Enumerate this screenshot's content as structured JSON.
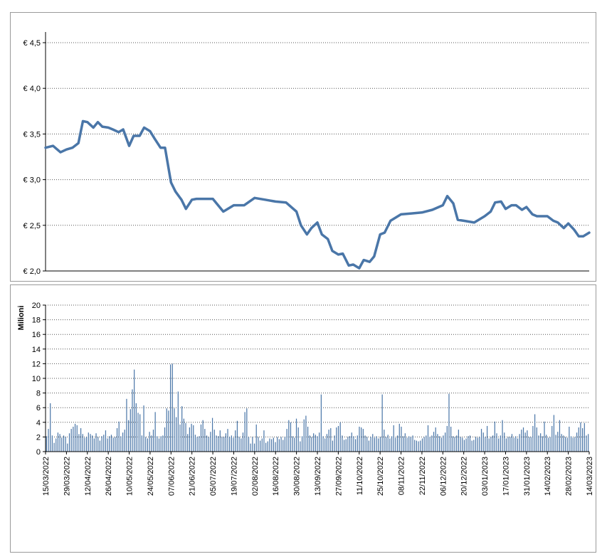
{
  "chart_data": [
    {
      "type": "line",
      "panel": "price",
      "title": "",
      "xlabel": "",
      "ylabel": "",
      "ylim": [
        2.0,
        4.5
      ],
      "yticks": [
        2.0,
        2.5,
        3.0,
        3.5,
        4.0,
        4.5
      ],
      "ytick_labels": [
        "€ 2,0",
        "€ 2,5",
        "€ 3,0",
        "€ 3,5",
        "€ 4,0",
        "€ 4,5"
      ],
      "grid": true,
      "line_color": "#4A76A8",
      "series": [
        {
          "x": [
            "15/03/2022",
            "20/03/2022",
            "25/03/2022",
            "29/03/2022",
            "02/04/2022",
            "06/04/2022",
            "09/04/2022",
            "12/04/2022",
            "16/04/2022",
            "19/04/2022",
            "22/04/2022",
            "26/04/2022",
            "29/04/2022",
            "03/05/2022",
            "06/05/2022",
            "10/05/2022",
            "13/05/2022",
            "17/05/2022",
            "20/05/2022",
            "24/05/2022",
            "27/05/2022",
            "31/05/2022",
            "03/06/2022",
            "07/06/2022",
            "10/06/2022",
            "14/06/2022",
            "17/06/2022",
            "21/06/2022",
            "24/06/2022",
            "28/06/2022",
            "05/07/2022",
            "12/07/2022",
            "19/07/2022",
            "26/07/2022",
            "02/08/2022",
            "09/08/2022",
            "16/08/2022",
            "23/08/2022",
            "30/08/2022",
            "02/09/2022",
            "06/09/2022",
            "09/09/2022",
            "13/09/2022",
            "16/09/2022",
            "20/09/2022",
            "23/09/2022",
            "27/09/2022",
            "30/09/2022",
            "04/10/2022",
            "07/10/2022",
            "11/10/2022",
            "14/10/2022",
            "18/10/2022",
            "21/10/2022",
            "25/10/2022",
            "28/10/2022",
            "01/11/2022",
            "08/11/2022",
            "15/11/2022",
            "22/11/2022",
            "29/11/2022",
            "06/12/2022",
            "09/12/2022",
            "13/12/2022",
            "16/12/2022",
            "20/12/2022",
            "27/12/2022",
            "03/01/2023",
            "07/01/2023",
            "10/01/2023",
            "14/01/2023",
            "17/01/2023",
            "21/01/2023",
            "24/01/2023",
            "28/01/2023",
            "31/01/2023",
            "04/02/2023",
            "07/02/2023",
            "11/02/2023",
            "14/02/2023",
            "18/02/2023",
            "21/02/2023",
            "25/02/2023",
            "28/02/2023",
            "04/03/2023",
            "07/03/2023",
            "10/03/2023",
            "14/03/2023"
          ],
          "y": [
            3.35,
            3.37,
            3.3,
            3.33,
            3.35,
            3.4,
            3.64,
            3.63,
            3.57,
            3.63,
            3.58,
            3.57,
            3.55,
            3.52,
            3.55,
            3.37,
            3.48,
            3.48,
            3.57,
            3.53,
            3.45,
            3.35,
            3.35,
            2.97,
            2.87,
            2.78,
            2.68,
            2.78,
            2.79,
            2.79,
            2.79,
            2.65,
            2.72,
            2.72,
            2.8,
            2.78,
            2.76,
            2.75,
            2.65,
            2.5,
            2.4,
            2.47,
            2.53,
            2.4,
            2.35,
            2.22,
            2.18,
            2.19,
            2.06,
            2.07,
            2.03,
            2.12,
            2.1,
            2.16,
            2.4,
            2.42,
            2.55,
            2.62,
            2.63,
            2.64,
            2.67,
            2.72,
            2.82,
            2.74,
            2.56,
            2.55,
            2.53,
            2.6,
            2.65,
            2.75,
            2.76,
            2.68,
            2.72,
            2.72,
            2.67,
            2.7,
            2.62,
            2.6,
            2.6,
            2.6,
            2.55,
            2.53,
            2.47,
            2.52,
            2.45,
            2.38,
            2.38,
            2.42
          ]
        }
      ]
    },
    {
      "type": "bar",
      "panel": "volume",
      "title": "",
      "xlabel": "",
      "ylabel": "Milioni",
      "ylim": [
        0,
        20
      ],
      "yticks": [
        0,
        2,
        4,
        6,
        8,
        10,
        12,
        14,
        16,
        18,
        20
      ],
      "ytick_labels": [
        "0",
        "2",
        "4",
        "6",
        "8",
        "10",
        "12",
        "14",
        "16",
        "18",
        "20"
      ],
      "grid": true,
      "bar_color": "#4A76A8",
      "xtick_labels": [
        "15/03/2022",
        "29/03/2022",
        "12/04/2022",
        "26/04/2022",
        "10/05/2022",
        "24/05/2022",
        "07/06/2022",
        "21/06/2022",
        "05/07/2022",
        "19/07/2022",
        "02/08/2022",
        "16/08/2022",
        "30/08/2022",
        "13/09/2022",
        "27/09/2022",
        "11/10/2022",
        "25/10/2022",
        "08/11/2022",
        "22/11/2022",
        "06/12/2022",
        "20/12/2022",
        "03/01/2023",
        "17/01/2023",
        "31/01/2023",
        "14/02/2023",
        "28/02/2023",
        "14/03/2023"
      ],
      "series": [
        {
          "name": "",
          "values": [
            2.1,
            3.1,
            6.6,
            2.2,
            1.2,
            1.8,
            2.6,
            2.4,
            1.9,
            2.2,
            2.0,
            1.1,
            2.5,
            3.1,
            3.4,
            3.8,
            3.6,
            2.4,
            3.2,
            2.4,
            1.9,
            2.0,
            2.6,
            2.4,
            2.2,
            1.8,
            2.5,
            2.0,
            1.5,
            2.1,
            2.3,
            2.9,
            1.8,
            2.1,
            2.3,
            1.9,
            2.0,
            3.2,
            4.1,
            2.1,
            2.6,
            3.0,
            7.2,
            4.3,
            5.8,
            8.5,
            11.2,
            6.6,
            5.3,
            5.1,
            2.2,
            6.3,
            2.0,
            1.8,
            2.7,
            2.2,
            3.0,
            5.4,
            2.1,
            1.8,
            2.1,
            2.2,
            3.3,
            5.9,
            5.6,
            11.9,
            12.0,
            5.9,
            4.7,
            8.2,
            3.7,
            6.2,
            4.5,
            3.9,
            2.4,
            3.3,
            3.8,
            3.6,
            2.3,
            2.0,
            2.1,
            3.7,
            4.3,
            3.1,
            2.2,
            2.0,
            2.7,
            4.6,
            3.0,
            2.2,
            2.1,
            2.9,
            2.0,
            2.0,
            2.5,
            3.1,
            2.0,
            2.2,
            1.9,
            2.9,
            4.2,
            2.0,
            1.8,
            2.6,
            5.4,
            5.9,
            2.0,
            1.1,
            2.0,
            1.1,
            3.7,
            2.0,
            1.5,
            1.8,
            2.9,
            1.2,
            1.4,
            1.8,
            1.7,
            1.9,
            1.3,
            2.0,
            1.7,
            2.0,
            1.6,
            2.0,
            3.1,
            4.3,
            4.0,
            2.1,
            1.9,
            4.5,
            3.3,
            1.4,
            2.1,
            4.4,
            4.9,
            3.4,
            2.2,
            2.0,
            2.5,
            2.3,
            2.1,
            2.6,
            7.8,
            2.1,
            1.8,
            2.4,
            3.0,
            3.2,
            1.5,
            2.2,
            3.3,
            3.5,
            4.0,
            2.2,
            1.6,
            1.7,
            2.0,
            2.1,
            2.6,
            2.1,
            1.7,
            2.2,
            3.4,
            3.3,
            3.1,
            2.2,
            2.0,
            1.5,
            2.0,
            2.4,
            1.9,
            2.1,
            1.8,
            2.0,
            7.8,
            3.0,
            2.0,
            2.3,
            1.8,
            2.1,
            3.6,
            1.9,
            2.2,
            3.8,
            3.4,
            2.1,
            2.5,
            1.9,
            2.1,
            2.0,
            2.2,
            1.6,
            1.5,
            1.4,
            1.5,
            1.8,
            2.0,
            2.2,
            3.6,
            2.0,
            2.2,
            2.7,
            3.3,
            2.4,
            2.1,
            1.9,
            2.2,
            2.6,
            3.5,
            7.9,
            3.4,
            2.1,
            2.0,
            2.2,
            3.0,
            2.0,
            1.9,
            1.6,
            1.8,
            2.1,
            2.2,
            1.5,
            1.6,
            2.0,
            1.9,
            2.0,
            3.1,
            2.6,
            2.0,
            3.5,
            1.8,
            2.0,
            2.2,
            4.1,
            2.5,
            1.8,
            2.2,
            4.3,
            2.6,
            1.8,
            2.0,
            2.0,
            2.4,
            1.9,
            2.1,
            1.8,
            2.4,
            3.0,
            3.3,
            2.6,
            2.9,
            2.0,
            2.0,
            3.5,
            5.1,
            3.3,
            2.2,
            2.5,
            2.1,
            4.1,
            2.3,
            1.9,
            2.0,
            3.5,
            5.0,
            2.3,
            2.7,
            4.3,
            2.4,
            2.2,
            2.0,
            1.9,
            3.4,
            2.1,
            1.9,
            2.0,
            2.6,
            3.3,
            4.0,
            3.2,
            3.9,
            2.2,
            2.4
          ]
        }
      ]
    }
  ]
}
